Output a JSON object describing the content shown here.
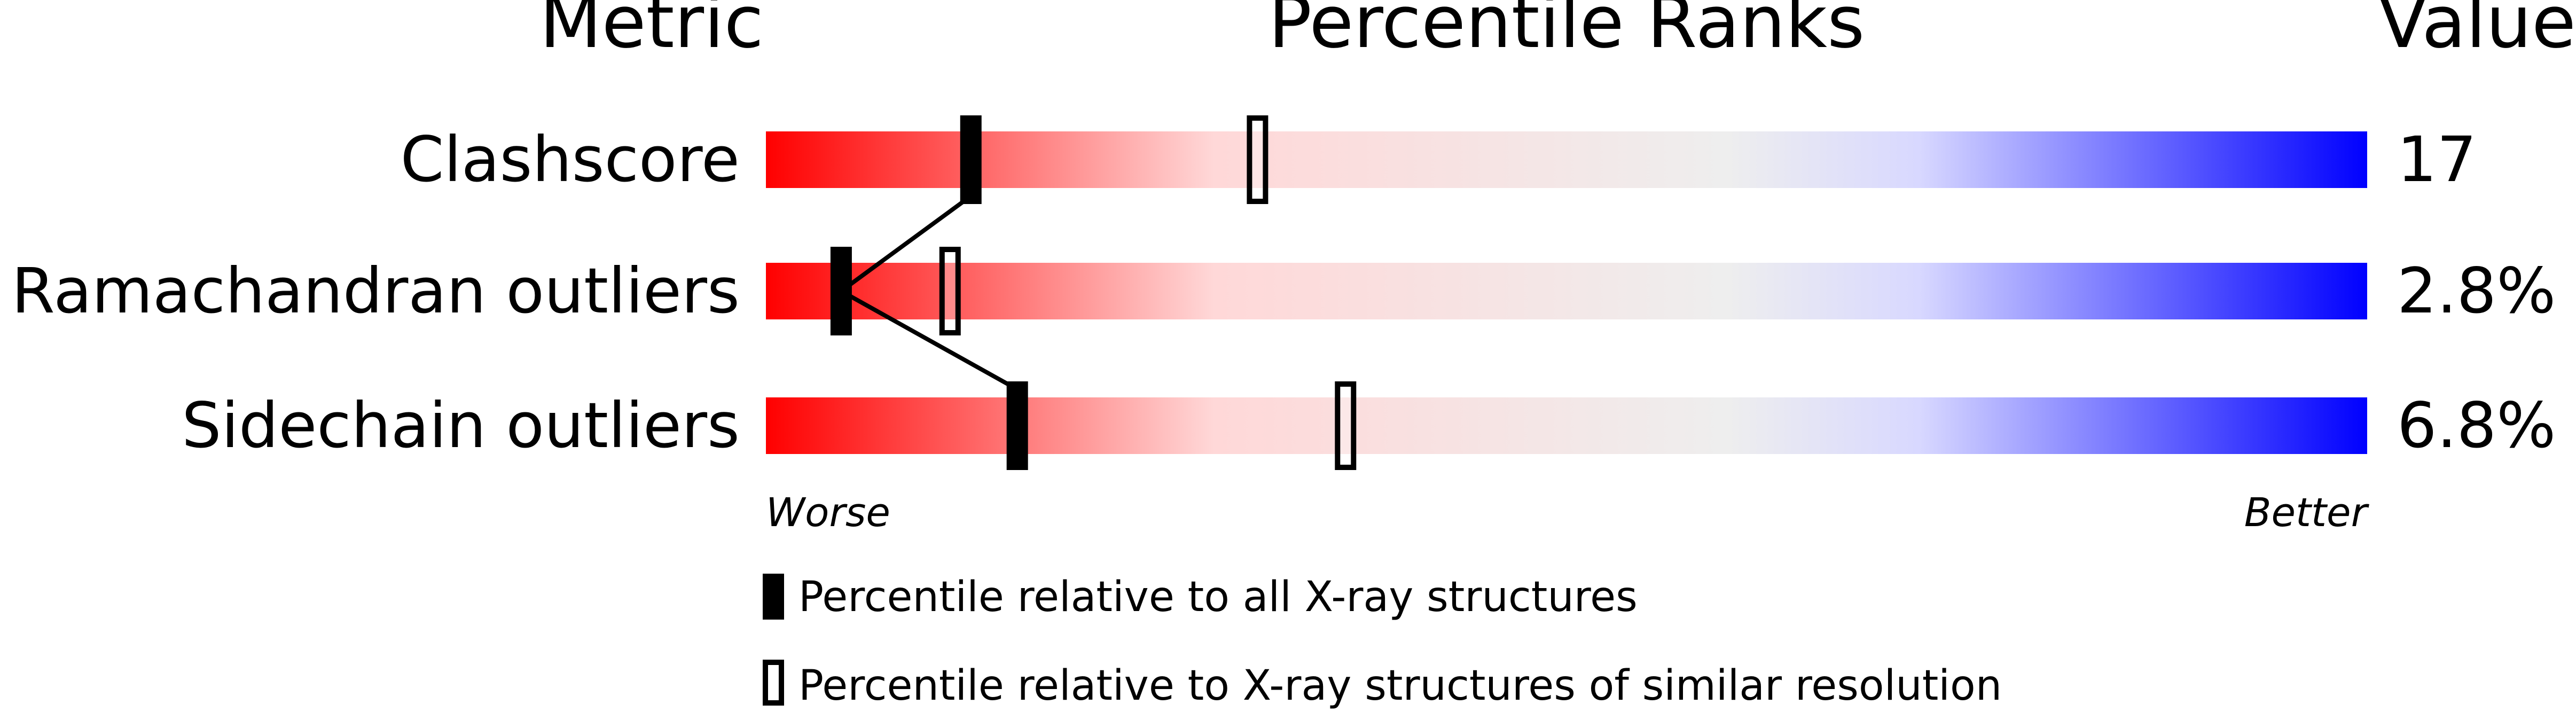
{
  "chart_data": {
    "type": "percentile-slider",
    "headers": {
      "metric": "Metric",
      "ranks": "Percentile Ranks",
      "value": "Value"
    },
    "xlim": [
      0,
      100
    ],
    "scale_labels": {
      "low": "Worse",
      "high": "Better"
    },
    "gradient_colors": [
      "#ff0000",
      "#ffd8d8",
      "#eeeeee",
      "#d8d8ff",
      "#0000ff"
    ],
    "metrics": [
      {
        "name": "Clashscore",
        "value": "17",
        "percentile_all": 12.8,
        "percentile_similar": 30.7
      },
      {
        "name": "Ramachandran outliers",
        "value": "2.8%",
        "percentile_all": 4.7,
        "percentile_similar": 11.5
      },
      {
        "name": "Sidechain outliers",
        "value": "6.8%",
        "percentile_all": 15.7,
        "percentile_similar": 36.2
      }
    ],
    "legend": [
      {
        "marker": "filled",
        "label": "Percentile relative to all X-ray structures"
      },
      {
        "marker": "open",
        "label": "Percentile relative to X-ray structures of similar resolution"
      }
    ]
  }
}
